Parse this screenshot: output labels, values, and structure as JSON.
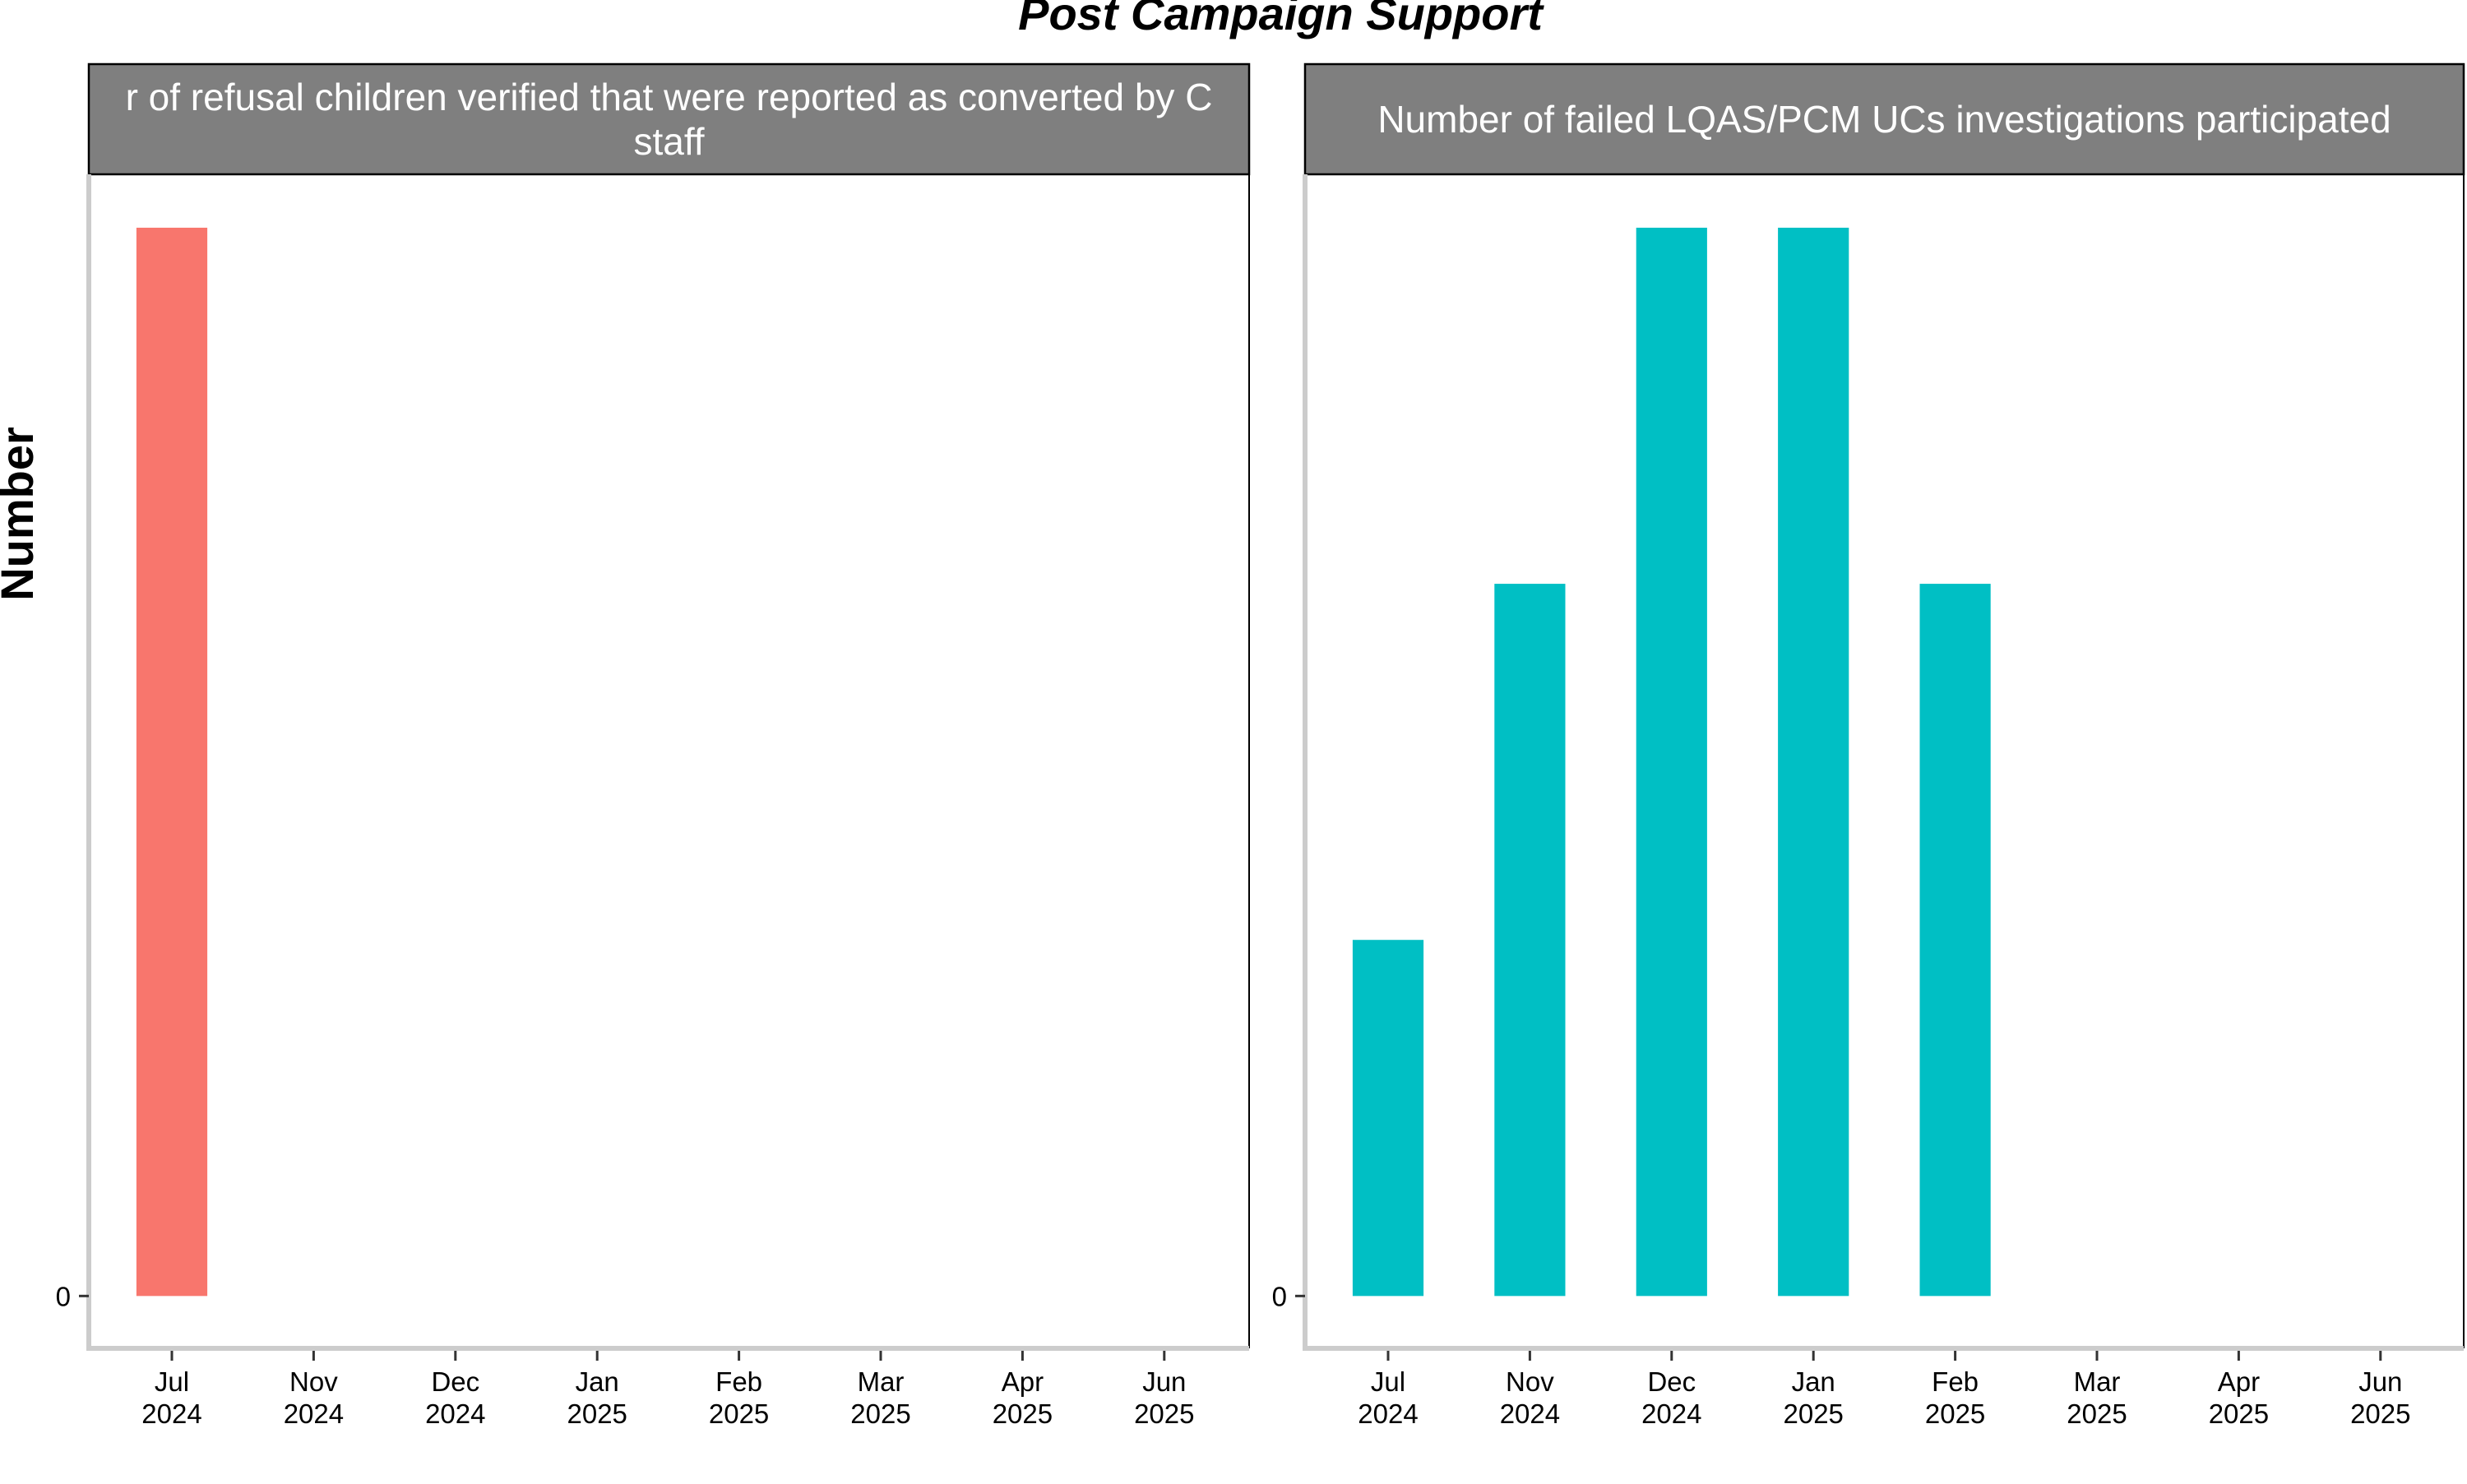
{
  "title": "Post Campaign Support",
  "ylabel": "Number",
  "colors": {
    "strip_bg": "#7f7f7f",
    "strip_text": "#ffffff",
    "axis_line": "#cccccc",
    "panel_border": "#000000"
  },
  "chart_data": [
    {
      "type": "bar",
      "title_lines": [
        "r of refusal children verified that were reported as converted by C",
        "staff"
      ],
      "xlabel": "",
      "ylabel": "Number",
      "color": "#f8766d",
      "categories": [
        [
          "Jul",
          "2024"
        ],
        [
          "Nov",
          "2024"
        ],
        [
          "Dec",
          "2024"
        ],
        [
          "Jan",
          "2025"
        ],
        [
          "Feb",
          "2025"
        ],
        [
          "Mar",
          "2025"
        ],
        [
          "Apr",
          "2025"
        ],
        [
          "Jun",
          "2025"
        ]
      ],
      "values": [
        1,
        0,
        0,
        0,
        0,
        0,
        0,
        0
      ],
      "ylim": [
        -0.049,
        1.05
      ],
      "yticks": [
        0
      ],
      "grid": false
    },
    {
      "type": "bar",
      "title_lines": [
        "Number of failed LQAS/PCM UCs investigations participated"
      ],
      "xlabel": "",
      "ylabel": "Number",
      "color": "#00bfc4",
      "categories": [
        [
          "Jul",
          "2024"
        ],
        [
          "Nov",
          "2024"
        ],
        [
          "Dec",
          "2024"
        ],
        [
          "Jan",
          "2025"
        ],
        [
          "Feb",
          "2025"
        ],
        [
          "Mar",
          "2025"
        ],
        [
          "Apr",
          "2025"
        ],
        [
          "Jun",
          "2025"
        ]
      ],
      "values": [
        1,
        2,
        3,
        3,
        2,
        0,
        0,
        0
      ],
      "ylim": [
        -0.147,
        3.15
      ],
      "yticks": [
        0
      ],
      "grid": false
    }
  ]
}
